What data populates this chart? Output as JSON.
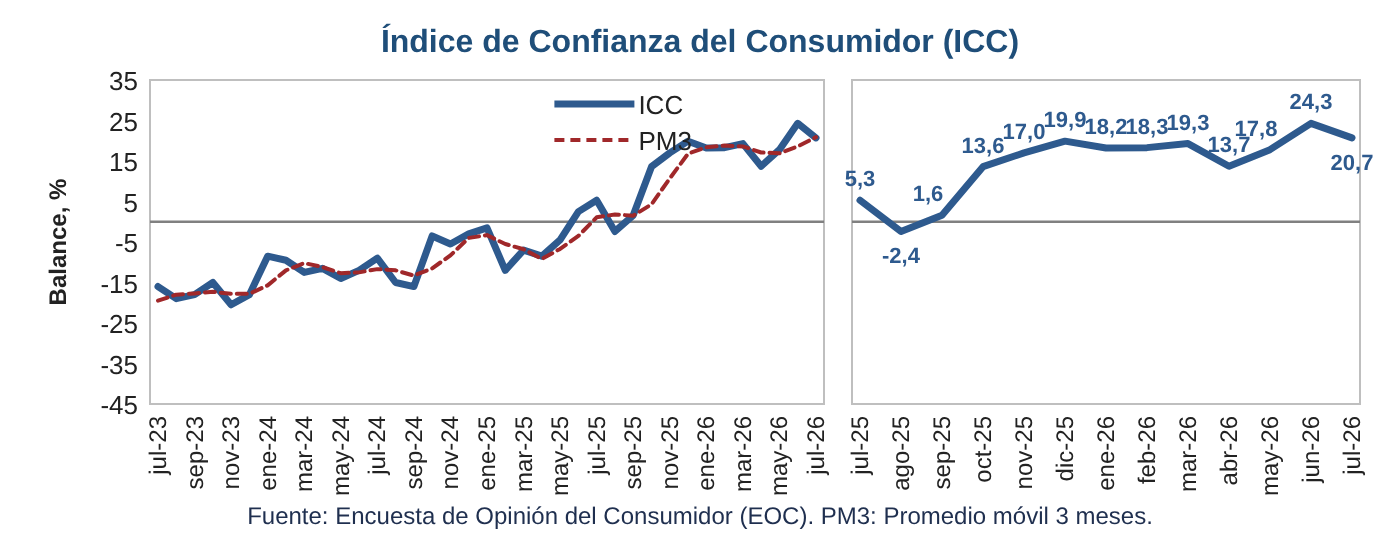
{
  "chart_data": [
    {
      "type": "line",
      "title": "Índice de Confianza del Consumidor (ICC)",
      "ylabel": "Balance, %",
      "categories": [
        "jul-23",
        null,
        "sep-23",
        null,
        "nov-23",
        null,
        "ene-24",
        null,
        "mar-24",
        null,
        "may-24",
        null,
        "jul-24",
        null,
        "sep-24",
        null,
        "nov-24",
        null,
        "ene-25",
        null,
        "mar-25",
        null,
        "may-25",
        null,
        "jul-25",
        null,
        "sep-25",
        null,
        "nov-25",
        null,
        "ene-26",
        null,
        "mar-26",
        null,
        "may-26",
        null,
        "jul-26"
      ],
      "series": [
        {
          "name": "ICC",
          "color": "#2e5a8e",
          "line_style": "solid",
          "values": [
            -16,
            -19,
            -18,
            -15,
            -20.5,
            -18,
            -8.5,
            -9.5,
            -12.5,
            -11.5,
            -14,
            -12,
            -9,
            -15,
            -16,
            -3.5,
            -5.5,
            -3,
            -1.5,
            -12,
            -7,
            -8.5,
            -4.5,
            2.5,
            5.3,
            -2.4,
            1.6,
            13.6,
            17,
            19.9,
            18.2,
            18.3,
            19.3,
            13.7,
            17.8,
            24.3,
            20.7
          ]
        },
        {
          "name": "PM3",
          "color": "#a0282a",
          "line_style": "dashed",
          "values": [
            -19.5,
            -18,
            -17.7,
            -17.3,
            -17.8,
            -17.8,
            -15.7,
            -12,
            -10.2,
            -11.2,
            -12.7,
            -12.5,
            -11.7,
            -12,
            -13.3,
            -11.5,
            -8.3,
            -4,
            -3.3,
            -5.5,
            -6.8,
            -9.2,
            -6.7,
            -3.5,
            1.1,
            1.8,
            1.5,
            4.3,
            10.7,
            16.8,
            18.4,
            18.8,
            18.6,
            17.1,
            16.9,
            18.6,
            20.9
          ]
        }
      ],
      "ylim": [
        -45,
        35
      ],
      "yticks": [
        35,
        25,
        15,
        5,
        -5,
        -15,
        -25,
        -35,
        -45
      ],
      "ref_lines": [
        {
          "axis": "y",
          "value": 0,
          "color": "#808080"
        }
      ],
      "legend": "top right",
      "grid": false,
      "annotations": [
        "Fuente: Encuesta de Opinión del Consumidor (EOC). PM3: Promedio móvil 3 meses."
      ]
    },
    {
      "type": "line",
      "categories": [
        "jul-25",
        "ago-25",
        "sep-25",
        "oct-25",
        "nov-25",
        "dic-25",
        "ene-26",
        "feb-26",
        "mar-26",
        "abr-26",
        "may-26",
        "jun-26",
        "jul-26"
      ],
      "series": [
        {
          "color": "#2e5a8e",
          "line_style": "solid",
          "values": [
            5.3,
            -2.4,
            1.6,
            13.6,
            17.0,
            19.9,
            18.2,
            18.3,
            19.3,
            13.7,
            17.8,
            24.3,
            20.7
          ],
          "value_labels": [
            "5,3",
            "-2,4",
            "1,6",
            "13,6",
            "17,0",
            "19,9",
            "18,2",
            "18,3",
            "19,3",
            "13,7",
            "17,8",
            "24,3",
            "20,7"
          ]
        }
      ],
      "ylim": [
        -45,
        35
      ],
      "yticks": [
        35,
        25,
        15,
        5,
        -5,
        -15,
        -25,
        -35,
        -45
      ],
      "tick_labels": "x",
      "ref_lines": [
        {
          "axis": "y",
          "value": 0,
          "color": "#808080"
        }
      ],
      "legend": false,
      "grid": false
    }
  ]
}
